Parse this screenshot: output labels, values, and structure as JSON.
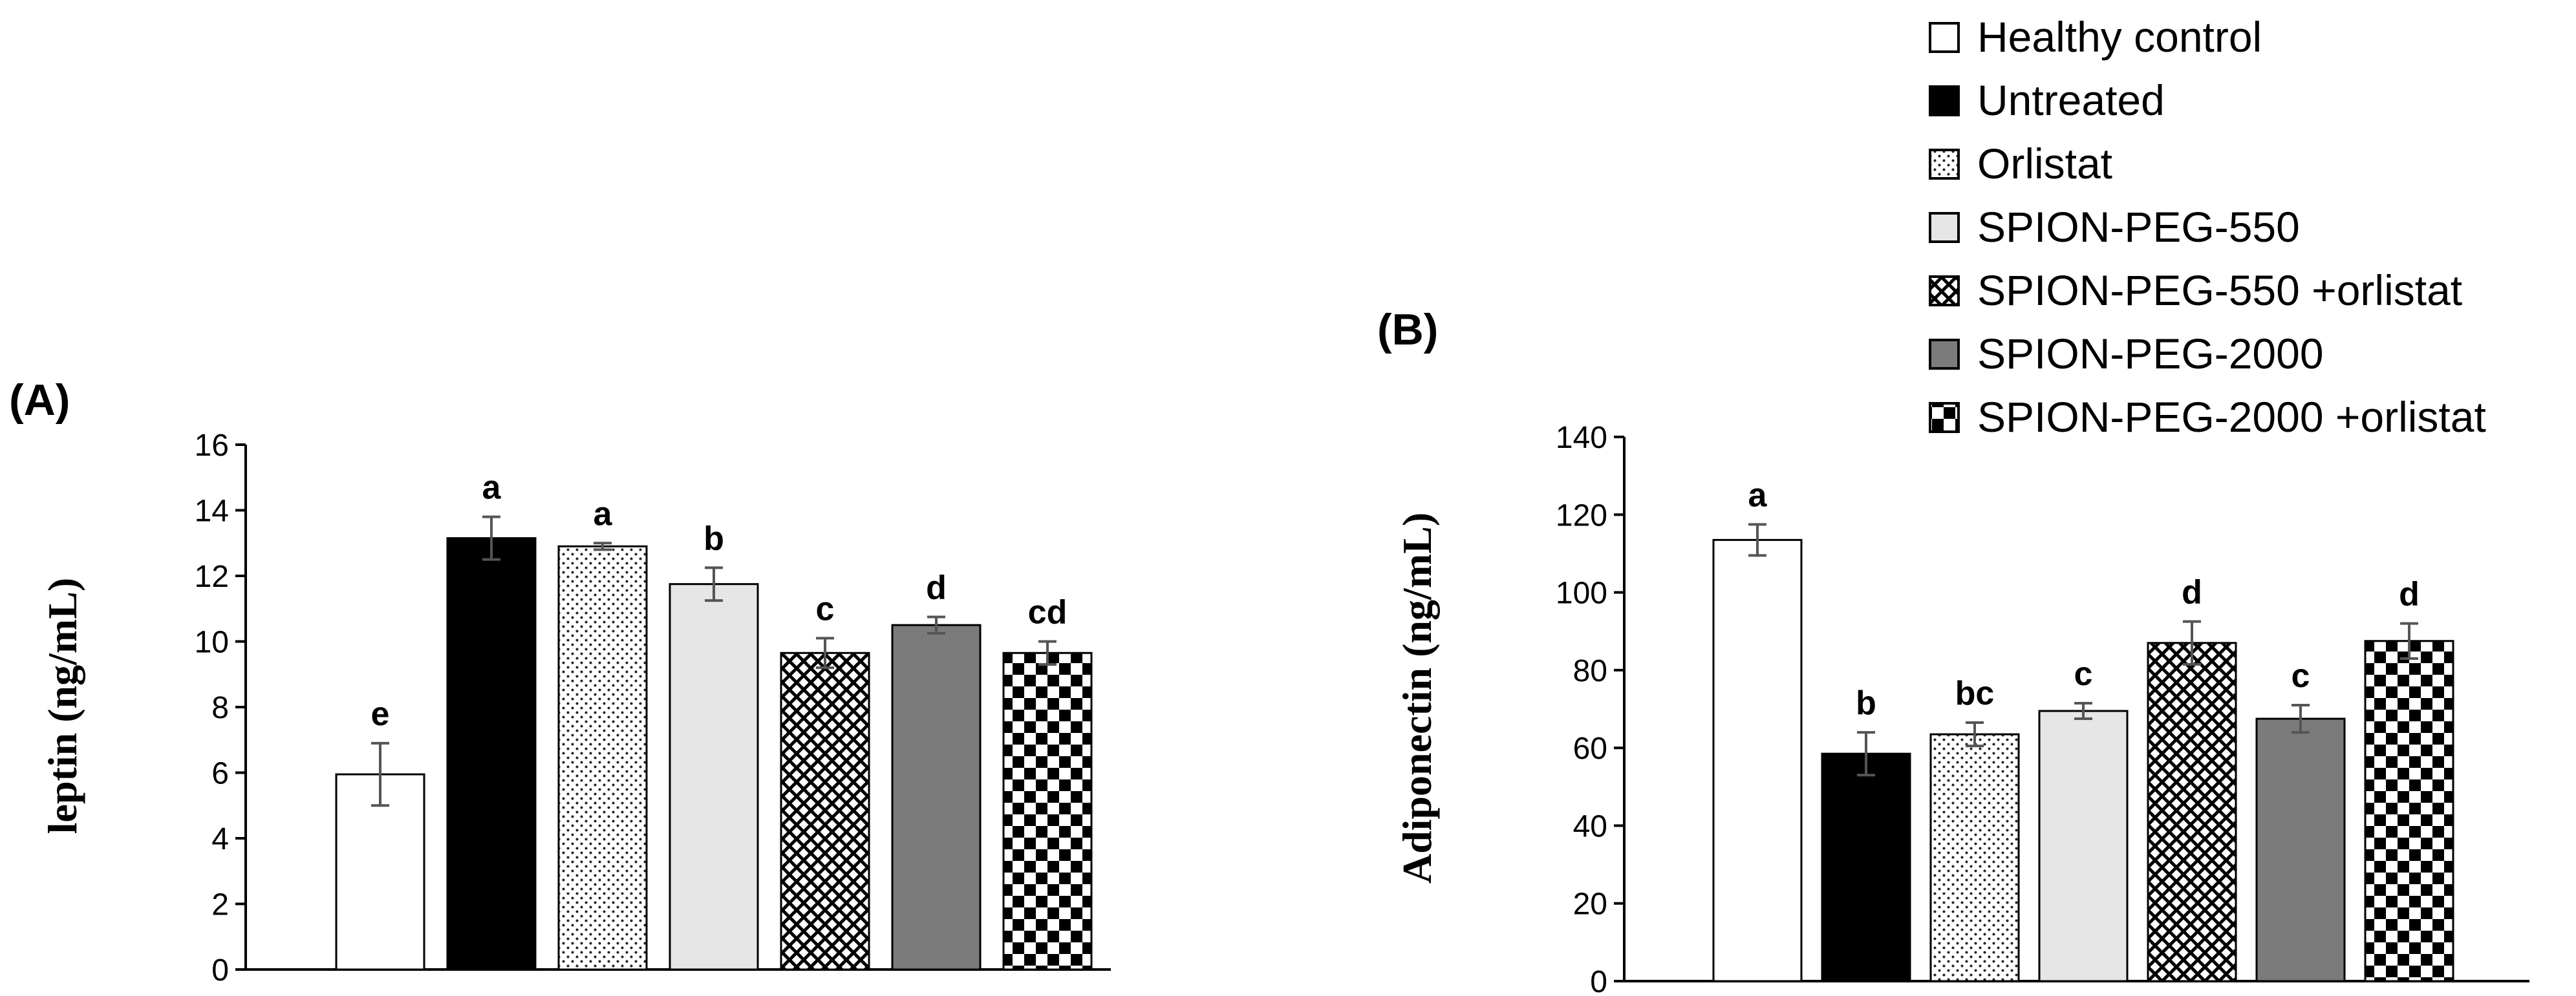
{
  "legend": {
    "entries": [
      "Healthy control",
      "Untreated",
      "Orlistat",
      "SPION-PEG-550",
      "SPION-PEG-550 +orlistat",
      "SPION-PEG-2000",
      "SPION-PEG-2000 +orlistat"
    ],
    "fills": [
      "white",
      "black",
      "dots",
      "lightgray",
      "crosshatch",
      "gray",
      "checker"
    ]
  },
  "chart_data": [
    {
      "type": "bar",
      "panel_label": "(A)",
      "ylabel": "leptin (ng/mL)",
      "xlabel": "",
      "ylim": [
        0,
        16
      ],
      "yticks": [
        0,
        2,
        4,
        6,
        8,
        10,
        12,
        14,
        16
      ],
      "categories": [
        "Healthy control",
        "Untreated",
        "Orlistat",
        "SPION-PEG-550",
        "SPION-PEG-550 +orlistat",
        "SPION-PEG-2000",
        "SPION-PEG-2000 +orlistat"
      ],
      "values": [
        5.95,
        13.15,
        12.9,
        11.75,
        9.65,
        10.5,
        9.65
      ],
      "errors": [
        0.95,
        0.65,
        0.1,
        0.5,
        0.45,
        0.25,
        0.35
      ],
      "significance_letters": [
        "e",
        "a",
        "a",
        "b",
        "c",
        "d",
        "cd"
      ]
    },
    {
      "type": "bar",
      "panel_label": "(B)",
      "ylabel": "Adiponectin (ng/mL)",
      "xlabel": "",
      "ylim": [
        0,
        140
      ],
      "yticks": [
        0,
        20,
        40,
        60,
        80,
        100,
        120,
        140
      ],
      "categories": [
        "Healthy control",
        "Untreated",
        "Orlistat",
        "SPION-PEG-550",
        "SPION-PEG-550 +orlistat",
        "SPION-PEG-2000",
        "SPION-PEG-2000 +orlistat"
      ],
      "values": [
        113.5,
        58.5,
        63.5,
        69.5,
        87.0,
        67.5,
        87.5
      ],
      "errors": [
        4.0,
        5.5,
        3.0,
        2.0,
        5.5,
        3.5,
        4.5
      ],
      "significance_letters": [
        "a",
        "b",
        "bc",
        "c",
        "d",
        "c",
        "d"
      ]
    }
  ]
}
